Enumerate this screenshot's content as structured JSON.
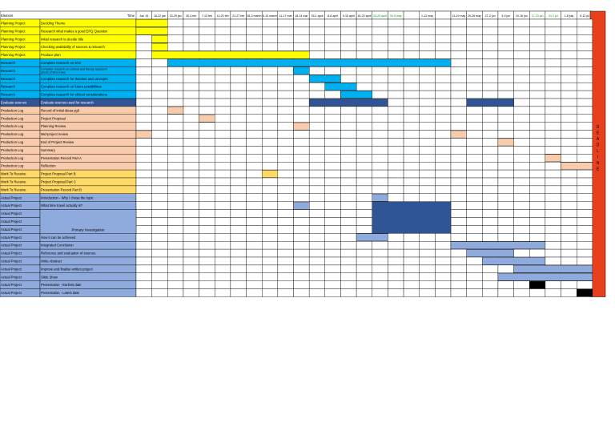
{
  "header": {
    "element": "Element",
    "task": "Time"
  },
  "weeks": [
    "Jan 15",
    "16-22 jan",
    "23-29 jan",
    "30-4 feb",
    "7-13 feb",
    "14-20 feb",
    "21-27 feb",
    "28-3 march",
    "6-10 march",
    "11-17 mar",
    "18-24 mar",
    "25-1 april",
    "8-8 april",
    "9-15 april",
    "16-22 april",
    "23-29 april",
    "30-5 may",
    "",
    "1-12 may",
    "",
    "13-19 may",
    "20-26 may",
    "27-2 jun",
    "3-9 jun",
    "10-16 jun",
    "17-23 jun",
    "24-1 jul",
    "1-8 july",
    "9-12 jul"
  ],
  "deadline_label": "DEADLINE",
  "colors": {
    "yellow": "#ffff00",
    "cyan": "#00b0f0",
    "navy": "#2f5597",
    "peach": "#f8cbad",
    "gold": "#ffd966",
    "lilac": "#8faadc",
    "black": "#000000",
    "red": "#e8401c",
    "green_text": "#00a000"
  },
  "rows": [
    {
      "element": "Planning Project",
      "task": "Deciding Theme",
      "color": "yellow",
      "bars": [
        [
          0,
          1
        ]
      ]
    },
    {
      "element": "Planning Project",
      "task": "Research what makes a good EPQ Question",
      "color": "yellow",
      "bars": [
        [
          0,
          1
        ]
      ]
    },
    {
      "element": "Planning Project",
      "task": "Initial research to decide title",
      "color": "yellow",
      "bars": [
        [
          1,
          1
        ]
      ]
    },
    {
      "element": "Planning Project",
      "task": "Checking availability of sources & research",
      "color": "yellow",
      "bars": [
        [
          1,
          1
        ]
      ]
    },
    {
      "element": "Planning Project",
      "task": "Produce plan",
      "color": "yellow",
      "bars": [
        [
          1,
          10
        ]
      ]
    },
    {
      "element": "Research",
      "task": "Complete research on time",
      "color": "cyan",
      "bars": [
        [
          2,
          19
        ]
      ]
    },
    {
      "element": "Research",
      "task": "Complete research on cultural and literary representations of time travel",
      "color": "cyan",
      "bars": [
        [
          10,
          10
        ]
      ]
    },
    {
      "element": "Research",
      "task": "Complete research for theories and concepts",
      "color": "cyan",
      "bars": [
        [
          11,
          12
        ]
      ]
    },
    {
      "element": "Research",
      "task": "Complete research on future possibilities",
      "color": "cyan",
      "bars": [
        [
          12,
          13
        ]
      ]
    },
    {
      "element": "Research",
      "task": "Complete research for ethical considerations",
      "color": "cyan",
      "bars": [
        [
          13,
          14
        ]
      ]
    },
    {
      "element": "Evaluate sources",
      "task": "Evaluate sources used for research",
      "color": "navy",
      "bars": [
        [
          11,
          15
        ],
        [
          21,
          23
        ]
      ]
    },
    {
      "element": "Production Log",
      "task": "Record of initial ideas pg3",
      "color": "peach",
      "bars": [
        [
          2,
          2
        ]
      ]
    },
    {
      "element": "Production Log",
      "task": "Project Proposal",
      "color": "peach",
      "bars": [
        [
          4,
          4
        ]
      ]
    },
    {
      "element": "Production Log",
      "task": "Planning Review",
      "color": "peach",
      "bars": [
        [
          10,
          10
        ]
      ]
    },
    {
      "element": "Production Log",
      "task": "Mid-project review",
      "color": "peach",
      "bars": [
        [
          0,
          0
        ],
        [
          20,
          20
        ]
      ]
    },
    {
      "element": "Production Log",
      "task": "End of Project Review",
      "color": "peach",
      "bars": [
        [
          23,
          23
        ]
      ]
    },
    {
      "element": "Production Log",
      "task": "Summary",
      "color": "peach",
      "bars": []
    },
    {
      "element": "Production Log",
      "task": "Presentation Record Part A",
      "color": "peach",
      "bars": [
        [
          26,
          26
        ]
      ]
    },
    {
      "element": "Production Log",
      "task": "Reflection",
      "color": "peach",
      "bars": [
        [
          27,
          28
        ]
      ]
    },
    {
      "element": "Work To Receive",
      "task": "Project Proposal Part B",
      "color": "gold",
      "bars": [
        [
          8,
          8
        ]
      ]
    },
    {
      "element": "Work To Receive",
      "task": "Project Proposal Part C",
      "color": "gold",
      "bars": []
    },
    {
      "element": "Work To Receive",
      "task": "Presentation Record Part B",
      "color": "gold",
      "bars": []
    },
    {
      "element": "Actual Project",
      "task": "Introduction - Why I chose the topic",
      "color": "lilac",
      "bars": [
        [
          15,
          15
        ]
      ]
    },
    {
      "element": "Actual Project",
      "task": "What time travel actually is?",
      "color": "lilac",
      "bars": [
        [
          10,
          10
        ]
      ]
    },
    {
      "element": "Actual Project",
      "task": "",
      "color": "lilac",
      "bars": []
    },
    {
      "element": "Actual Project",
      "task": "",
      "color": "lilac",
      "bars": []
    },
    {
      "element": "Actual Project",
      "task": "Primary Investigation",
      "color": "lilac",
      "bars": []
    },
    {
      "element": "Actual Project",
      "task": "How it can be achieved",
      "color": "lilac",
      "bars": [
        [
          14,
          15
        ]
      ]
    },
    {
      "element": "Actual Project",
      "task": "Integrated Conclusion",
      "color": "lilac",
      "bars": [
        [
          20,
          25
        ]
      ]
    },
    {
      "element": "Actual Project",
      "task": "Reference and evaluation of sources.",
      "color": "lilac",
      "bars": [
        [
          21,
          23
        ]
      ]
    },
    {
      "element": "Actual Project",
      "task": "Write Abstract",
      "color": "lilac",
      "bars": [
        [
          22,
          25
        ]
      ]
    },
    {
      "element": "Actual Project",
      "task": "Improve and finalise written project",
      "color": "lilac",
      "bars": [
        [
          24,
          28
        ]
      ]
    },
    {
      "element": "Actual Project",
      "task": "Slide Show",
      "color": "lilac",
      "bars": [
        [
          23,
          28
        ]
      ]
    },
    {
      "element": "Actual Project",
      "task": "Presentation - Earliest date",
      "color": "lilac",
      "bars": [
        [
          25,
          25
        ]
      ]
    },
    {
      "element": "Actual Project",
      "task": "Presentation - Latest date",
      "color": "lilac",
      "bars": [
        [
          28,
          28
        ]
      ]
    }
  ]
}
